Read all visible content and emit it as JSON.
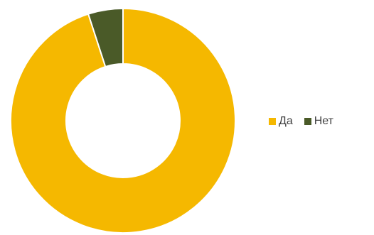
{
  "chart_data": {
    "type": "pie",
    "variant": "donut",
    "categories": [
      "Да",
      "Нет"
    ],
    "values": [
      95,
      5
    ],
    "colors": [
      "#F5B800",
      "#4A5A28"
    ],
    "legend_position": "right",
    "title": ""
  },
  "legend": {
    "items": [
      {
        "label": "Да",
        "color": "#F5B800"
      },
      {
        "label": "Нет",
        "color": "#4A5A28"
      }
    ]
  }
}
